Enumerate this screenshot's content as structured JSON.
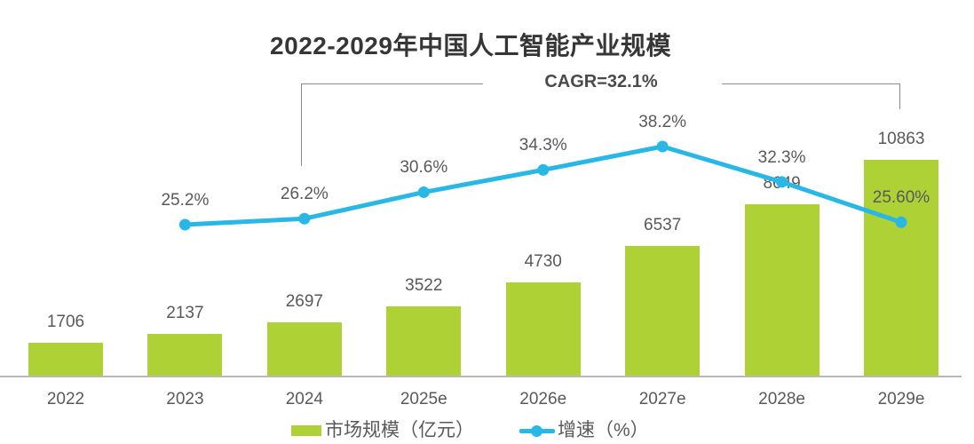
{
  "title": "2022-2029年中国人工智能产业规模",
  "chart_data": {
    "type": "bar+line",
    "categories": [
      "2022",
      "2023",
      "2024",
      "2025e",
      "2026e",
      "2027e",
      "2028e",
      "2029e"
    ],
    "series": [
      {
        "name": "市场规模（亿元）",
        "type": "bar",
        "color": "#AED136",
        "values": [
          1706,
          2137,
          2697,
          3522,
          4730,
          6537,
          8649,
          10863
        ],
        "value_labels": [
          "1706",
          "2137",
          "2697",
          "3522",
          "4730",
          "6537",
          "8649",
          "10863"
        ]
      },
      {
        "name": "增速（%）",
        "type": "line",
        "color": "#29B7E5",
        "values": [
          null,
          25.2,
          26.2,
          30.6,
          34.3,
          38.2,
          32.3,
          25.6
        ],
        "value_labels": [
          "",
          "25.2%",
          "26.2%",
          "30.6%",
          "34.3%",
          "38.2%",
          "32.3%",
          "25.60%"
        ]
      }
    ],
    "annotation": {
      "text": "CAGR=32.1%",
      "from": "2024",
      "to": "2029e"
    },
    "legend_position": "bottom",
    "grid": false,
    "x_axis_line": true,
    "y_axis": "hidden"
  },
  "colors": {
    "bar": "#AED136",
    "line": "#29B7E5",
    "label": "#595959",
    "title": "#363636",
    "annotation": "#4a4a4a",
    "axis_line": "#B8B8B8",
    "bracket": "#8C8C8C",
    "background": "#FFFFFF"
  }
}
